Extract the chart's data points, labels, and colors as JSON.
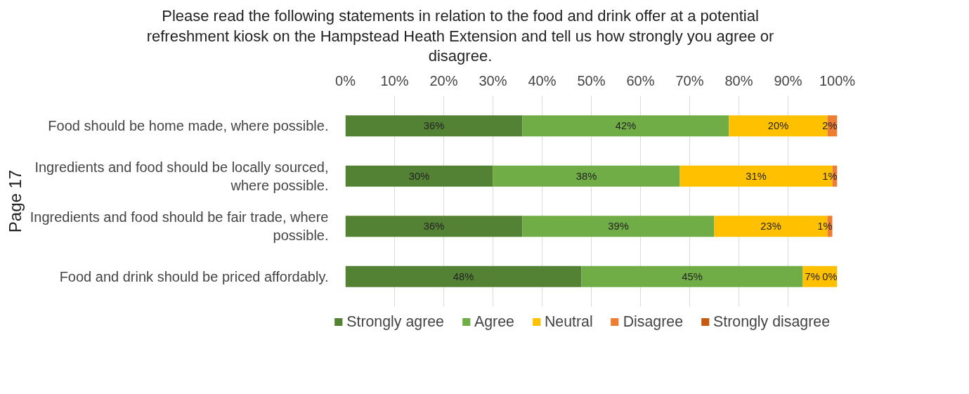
{
  "chart_data": {
    "type": "bar",
    "orientation": "horizontal",
    "stacked": true,
    "title": "Please read the following statements in relation to the food and drink offer at a potential refreshment kiosk on the Hampstead Heath Extension and tell us how strongly you agree or disagree.",
    "categories": [
      "Food should be home made, where possible.",
      "Ingredients and food should be locally sourced, where possible.",
      "Ingredients and food should be fair trade, where possible.",
      "Food and drink should be priced affordably."
    ],
    "series": [
      {
        "name": "Strongly agree",
        "color": "#548235",
        "values": [
          36,
          30,
          36,
          48
        ],
        "value_labels": [
          "36%",
          "30%",
          "36%",
          "48%"
        ]
      },
      {
        "name": "Agree",
        "color": "#70ad47",
        "values": [
          42,
          38,
          39,
          45
        ],
        "value_labels": [
          "42%",
          "38%",
          "39%",
          "45%"
        ]
      },
      {
        "name": "Neutral",
        "color": "#ffc000",
        "values": [
          20,
          31,
          23,
          7
        ],
        "value_labels": [
          "20%",
          "31%",
          "23%",
          "7%"
        ]
      },
      {
        "name": "Disagree",
        "color": "#ed7d31",
        "values": [
          2,
          1,
          1,
          0
        ],
        "value_labels": [
          "2%",
          "1%",
          "1%",
          "0%"
        ]
      },
      {
        "name": "Strongly disagree",
        "color": "#c55a11",
        "values": [
          0,
          0,
          0,
          0
        ],
        "value_labels": [
          null,
          null,
          null,
          null
        ]
      }
    ],
    "xlim": [
      0,
      100
    ],
    "xticks": [
      {
        "value": 0,
        "label": "0%"
      },
      {
        "value": 10,
        "label": "10%"
      },
      {
        "value": 20,
        "label": "20%"
      },
      {
        "value": 30,
        "label": "30%"
      },
      {
        "value": 40,
        "label": "40%"
      },
      {
        "value": 50,
        "label": "50%"
      },
      {
        "value": 60,
        "label": "60%"
      },
      {
        "value": 70,
        "label": "70%"
      },
      {
        "value": 80,
        "label": "80%"
      },
      {
        "value": 90,
        "label": "90%"
      },
      {
        "value": 100,
        "label": "100%"
      }
    ],
    "grid": "x",
    "legend": "bottom",
    "annotations": [
      "Page 17"
    ]
  }
}
